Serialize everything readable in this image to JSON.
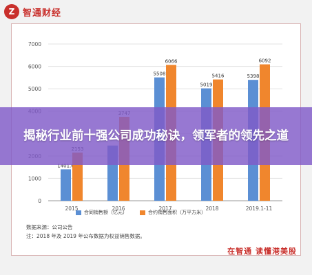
{
  "logo": {
    "mark": "Z",
    "name": "智通财经"
  },
  "banner": {
    "headline": "揭秘行业前十强公司成功秘诀，领军者的领先之道"
  },
  "chart_data": {
    "type": "bar",
    "categories": [
      "2015",
      "2016",
      "2017",
      "2018",
      "2019.1-11"
    ],
    "series": [
      {
        "name": "合同销售额（亿元）",
        "color": "#5b8fd4",
        "values": [
          1401.6,
          2466,
          5508,
          5019,
          5398
        ],
        "labels": [
          "1401.6",
          "",
          "5508",
          "5019",
          "5398"
        ]
      },
      {
        "name": "合约销售面积（万平方米）",
        "color": "#f0862d",
        "values": [
          2153,
          3747,
          6066,
          5416,
          6092
        ],
        "labels": [
          "2153",
          "3747",
          "6066",
          "5416",
          "6092"
        ]
      }
    ],
    "ylim": [
      0,
      7000
    ],
    "yticks": [
      "0",
      "1000",
      "2000",
      "3000",
      "4000",
      "5000",
      "6000",
      "7000"
    ],
    "grid": true,
    "legend_position": "bottom",
    "source_line": "数据来源：公司公告",
    "note_line": "注：2018 年及 2019 年公布数据为权益销售数据。"
  },
  "footer": {
    "text": "在智通 读懂港美股"
  },
  "colors": {
    "brand": "#c9302c",
    "banner": "#805ac8"
  }
}
